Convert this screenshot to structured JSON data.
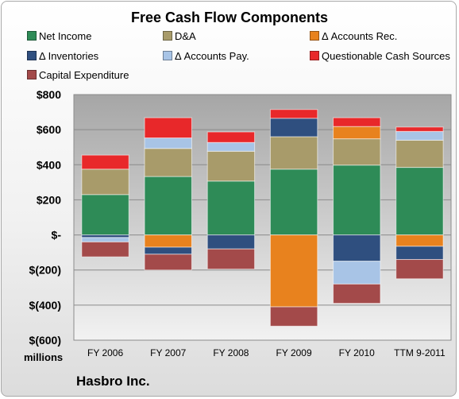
{
  "chart_data": {
    "type": "bar",
    "stacked": true,
    "title": "Free Cash Flow Components",
    "unit_label": "millions",
    "company": "Hasbro Inc.",
    "categories": [
      "FY 2006",
      "FY 2007",
      "FY 2008",
      "FY 2009",
      "FY 2010",
      "TTM 9-2011"
    ],
    "ylim": [
      -600,
      800
    ],
    "yticks": [
      {
        "value": 800,
        "label": "$800"
      },
      {
        "value": 600,
        "label": "$600"
      },
      {
        "value": 400,
        "label": "$400"
      },
      {
        "value": 200,
        "label": "$200"
      },
      {
        "value": 0,
        "label": "$-"
      },
      {
        "value": -200,
        "label": "$(200)"
      },
      {
        "value": -400,
        "label": "$(400)"
      },
      {
        "value": -600,
        "label": "$(600)"
      }
    ],
    "grid": true,
    "legend_position": "top",
    "series": [
      {
        "name": "Net Income",
        "color": "#2e8b57",
        "values": [
          230,
          333,
          307,
          375,
          398,
          385
        ]
      },
      {
        "name": "D&A",
        "color": "#a89b6a",
        "values": [
          145,
          160,
          170,
          185,
          150,
          155
        ]
      },
      {
        "name": "Δ Accounts Rec.",
        "color": "#e8821e",
        "values": [
          0,
          -70,
          0,
          -410,
          70,
          -65
        ]
      },
      {
        "name": "Δ Inventories",
        "color": "#2f4f7f",
        "values": [
          -15,
          -40,
          -80,
          105,
          -150,
          -75
        ]
      },
      {
        "name": "Δ Accounts Pay.",
        "color": "#a8c4e6",
        "values": [
          -25,
          60,
          50,
          0,
          -130,
          50
        ]
      },
      {
        "name": "Questionable Cash Sources",
        "color": "#e8282a",
        "values": [
          80,
          115,
          60,
          50,
          50,
          25
        ]
      },
      {
        "name": "Capital Expenditure",
        "color": "#a34a4a",
        "values": [
          -85,
          -90,
          -115,
          -110,
          -110,
          -110
        ]
      }
    ]
  }
}
